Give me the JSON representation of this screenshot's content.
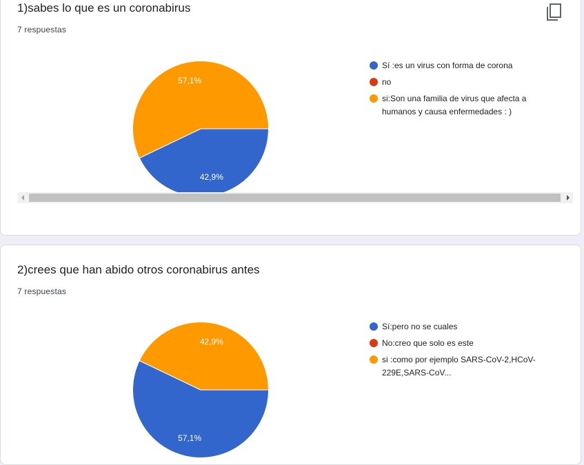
{
  "colors": {
    "blue": "#3366cc",
    "red": "#dc3912",
    "orange": "#ff9900"
  },
  "questions": [
    {
      "title": "1)sabes lo que es un coronabirus",
      "count": "7 respuestas",
      "copy_icon": "copy-icon",
      "legend": [
        {
          "label": "Sí :es un virus con forma de corona",
          "color": "#3366cc"
        },
        {
          "label": "no",
          "color": "#dc3912"
        },
        {
          "label": "si:Son una familia de virus que afecta a humanos y causa enfermedades : )",
          "color": "#ff9900"
        }
      ]
    },
    {
      "title": "2)crees que han abido otros coronabirus antes",
      "count": "7 respuestas",
      "legend": [
        {
          "label": "Sí:pero no se cuales",
          "color": "#3366cc"
        },
        {
          "label": "No:creo que solo es este",
          "color": "#dc3912"
        },
        {
          "label": "si :como por ejemplo SARS-CoV-2,HCoV-229E,SARS-CoV...",
          "color": "#ff9900"
        }
      ]
    }
  ],
  "chart_data": [
    {
      "type": "pie",
      "categories": [
        "Sí :es un virus con forma de corona",
        "no",
        "si:Son una familia de virus que afecta a humanos y causa enfermedades : )"
      ],
      "values": [
        42.9,
        0,
        57.1
      ],
      "labels": [
        "42,9%",
        "",
        "57,1%"
      ],
      "colors": [
        "#3366cc",
        "#dc3912",
        "#ff9900"
      ]
    },
    {
      "type": "pie",
      "categories": [
        "Sí:pero no se cuales",
        "No:creo que solo es este",
        "si :como por ejemplo SARS-CoV-2,HCoV-229E,SARS-CoV..."
      ],
      "values": [
        57.1,
        0,
        42.9
      ],
      "labels": [
        "57,1%",
        "",
        "42,9%"
      ],
      "colors": [
        "#3366cc",
        "#dc3912",
        "#ff9900"
      ]
    }
  ]
}
